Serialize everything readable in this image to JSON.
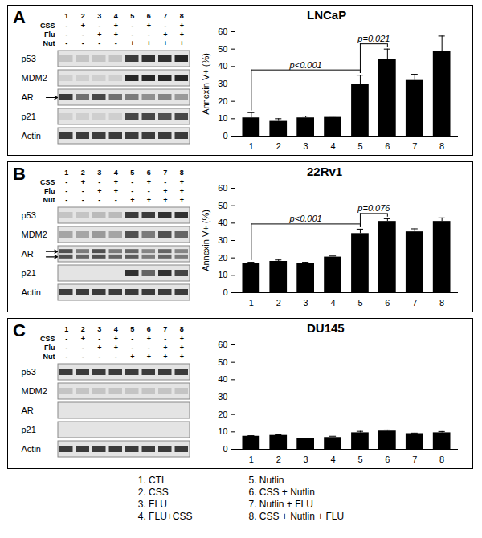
{
  "chart_data": [
    {
      "type": "bar",
      "panel": "A",
      "title": "LNCaP",
      "categories": [
        "1",
        "2",
        "3",
        "4",
        "5",
        "6",
        "7",
        "8"
      ],
      "values": [
        10.5,
        8.5,
        10.5,
        10.8,
        30,
        44,
        32,
        48.5
      ],
      "errors": [
        3,
        1.5,
        1,
        0.7,
        5,
        6,
        3.5,
        9
      ],
      "color": "#000000",
      "ylabel": "Annexin V+ (%)",
      "ylim": [
        0,
        60
      ],
      "yticks": [
        0,
        10,
        20,
        30,
        40,
        50,
        60
      ],
      "grid": false,
      "annotations": [
        {
          "from": "1",
          "to": "5",
          "label": "p<0.001"
        },
        {
          "from": "5",
          "to": "6",
          "label": "p=0.021"
        }
      ],
      "blot": {
        "lanes": [
          "1",
          "2",
          "3",
          "4",
          "5",
          "6",
          "7",
          "8"
        ],
        "treatments": [
          {
            "name": "CSS",
            "marks": [
              "-",
              "+",
              "-",
              "+",
              "-",
              "+",
              "-",
              "+"
            ]
          },
          {
            "name": "Flu",
            "marks": [
              "-",
              "-",
              "+",
              "+",
              "-",
              "-",
              "+",
              "+"
            ]
          },
          {
            "name": "Nut",
            "marks": [
              "-",
              "-",
              "-",
              "-",
              "+",
              "+",
              "+",
              "+"
            ]
          }
        ],
        "proteins": [
          {
            "name": "p53",
            "bands": [
              {
                "intensity": [
                  0.15,
                  0.15,
                  0.15,
                  0.15,
                  0.8,
                  0.85,
                  0.85,
                  0.9
                ],
                "arrow": false
              }
            ]
          },
          {
            "name": "MDM2",
            "bands": [
              {
                "intensity": [
                  0.1,
                  0.1,
                  0.1,
                  0.1,
                  0.9,
                  0.9,
                  0.9,
                  0.9
                ],
                "arrow": false
              }
            ]
          },
          {
            "name": "AR",
            "bands": [
              {
                "intensity": [
                  0.8,
                  0.55,
                  0.75,
                  0.55,
                  0.5,
                  0.4,
                  0.45,
                  0.35
                ],
                "arrow": true
              }
            ]
          },
          {
            "name": "p21",
            "bands": [
              {
                "intensity": [
                  0.1,
                  0.1,
                  0.1,
                  0.1,
                  0.75,
                  0.75,
                  0.7,
                  0.75
                ],
                "arrow": false
              }
            ]
          },
          {
            "name": "Actin",
            "bands": [
              {
                "intensity": [
                  0.8,
                  0.8,
                  0.8,
                  0.8,
                  0.8,
                  0.8,
                  0.8,
                  0.8
                ],
                "arrow": false
              }
            ]
          }
        ]
      }
    },
    {
      "type": "bar",
      "panel": "B",
      "title": "22Rv1",
      "categories": [
        "1",
        "2",
        "3",
        "4",
        "5",
        "6",
        "7",
        "8"
      ],
      "values": [
        17,
        18,
        17,
        20.5,
        34,
        41,
        35,
        41
      ],
      "errors": [
        0.5,
        0.8,
        0.5,
        0.6,
        2.5,
        1.5,
        1.7,
        2
      ],
      "color": "#000000",
      "ylabel": "Annexin V+ (%)",
      "ylim": [
        0,
        60
      ],
      "yticks": [
        0,
        10,
        20,
        30,
        40,
        50,
        60
      ],
      "grid": false,
      "annotations": [
        {
          "from": "1",
          "to": "5",
          "label": "p<0.001"
        },
        {
          "from": "5",
          "to": "6",
          "label": "p=0.076"
        }
      ],
      "blot": {
        "lanes": [
          "1",
          "2",
          "3",
          "4",
          "5",
          "6",
          "7",
          "8"
        ],
        "treatments": [
          {
            "name": "CSS",
            "marks": [
              "-",
              "+",
              "-",
              "+",
              "-",
              "+",
              "-",
              "+"
            ]
          },
          {
            "name": "Flu",
            "marks": [
              "-",
              "-",
              "+",
              "+",
              "-",
              "-",
              "+",
              "+"
            ]
          },
          {
            "name": "Nut",
            "marks": [
              "-",
              "-",
              "-",
              "-",
              "+",
              "+",
              "+",
              "+"
            ]
          }
        ],
        "proteins": [
          {
            "name": "p53",
            "bands": [
              {
                "intensity": [
                  0.15,
                  0.15,
                  0.2,
                  0.2,
                  0.8,
                  0.8,
                  0.85,
                  0.85
                ],
                "arrow": false
              }
            ]
          },
          {
            "name": "MDM2",
            "bands": [
              {
                "intensity": [
                  0.3,
                  0.3,
                  0.35,
                  0.3,
                  0.7,
                  0.5,
                  0.7,
                  0.6
                ],
                "arrow": false
              }
            ]
          },
          {
            "name": "AR",
            "bands": [
              {
                "intensity": [
                  0.7,
                  0.5,
                  0.7,
                  0.5,
                  0.6,
                  0.45,
                  0.6,
                  0.45
                ],
                "arrow": true
              },
              {
                "intensity": [
                  0.7,
                  0.6,
                  0.7,
                  0.6,
                  0.65,
                  0.5,
                  0.6,
                  0.5
                ],
                "arrow": true
              }
            ]
          },
          {
            "name": "p21",
            "bands": [
              {
                "intensity": [
                  0,
                  0,
                  0,
                  0,
                  0.85,
                  0.6,
                  0.85,
                  0.75
                ],
                "arrow": false
              }
            ]
          },
          {
            "name": "Actin",
            "bands": [
              {
                "intensity": [
                  0.8,
                  0.8,
                  0.8,
                  0.8,
                  0.8,
                  0.8,
                  0.8,
                  0.8
                ],
                "arrow": false
              }
            ]
          }
        ]
      }
    },
    {
      "type": "bar",
      "panel": "C",
      "title": "DU145",
      "categories": [
        "1",
        "2",
        "3",
        "4",
        "5",
        "6",
        "7",
        "8"
      ],
      "values": [
        7.5,
        8,
        6,
        6.8,
        9.5,
        10.5,
        9,
        9.5
      ],
      "errors": [
        0.3,
        0.3,
        0.3,
        0.7,
        0.8,
        0.6,
        0.3,
        0.7
      ],
      "color": "#000000",
      "ylabel": null,
      "ylim": [
        0,
        60
      ],
      "yticks": [
        0,
        10,
        20,
        30,
        40,
        50,
        60
      ],
      "grid": false,
      "annotations": [],
      "blot": {
        "lanes": [
          "1",
          "2",
          "3",
          "4",
          "5",
          "6",
          "7",
          "8"
        ],
        "treatments": [
          {
            "name": "CSS",
            "marks": [
              "-",
              "+",
              "-",
              "+",
              "-",
              "+",
              "-",
              "+"
            ]
          },
          {
            "name": "Flu",
            "marks": [
              "-",
              "-",
              "+",
              "+",
              "-",
              "-",
              "+",
              "+"
            ]
          },
          {
            "name": "Nut",
            "marks": [
              "-",
              "-",
              "-",
              "-",
              "+",
              "+",
              "+",
              "+"
            ]
          }
        ],
        "proteins": [
          {
            "name": "p53",
            "bands": [
              {
                "intensity": [
                  0.8,
                  0.8,
                  0.8,
                  0.8,
                  0.8,
                  0.8,
                  0.8,
                  0.8
                ],
                "arrow": false
              }
            ]
          },
          {
            "name": "MDM2",
            "bands": [
              {
                "intensity": [
                  0.15,
                  0.15,
                  0.15,
                  0.15,
                  0.15,
                  0.15,
                  0.15,
                  0.15
                ],
                "arrow": false
              }
            ]
          },
          {
            "name": "AR",
            "bands": [
              {
                "intensity": [
                  0,
                  0,
                  0,
                  0,
                  0,
                  0,
                  0,
                  0
                ],
                "arrow": false
              }
            ]
          },
          {
            "name": "p21",
            "bands": [
              {
                "intensity": [
                  0,
                  0,
                  0,
                  0,
                  0,
                  0,
                  0,
                  0
                ],
                "arrow": false
              }
            ]
          },
          {
            "name": "Actin",
            "bands": [
              {
                "intensity": [
                  0.8,
                  0.8,
                  0.8,
                  0.8,
                  0.8,
                  0.8,
                  0.8,
                  0.8
                ],
                "arrow": false
              }
            ]
          }
        ]
      }
    }
  ],
  "treatment_key": [
    "1. CTL",
    "2. CSS",
    "3. FLU",
    "4. FLU+CSS",
    "5. Nutlin",
    "6. CSS + Nutlin",
    "7. Nutlin + FLU",
    "8. CSS + Nutlin + FLU"
  ]
}
